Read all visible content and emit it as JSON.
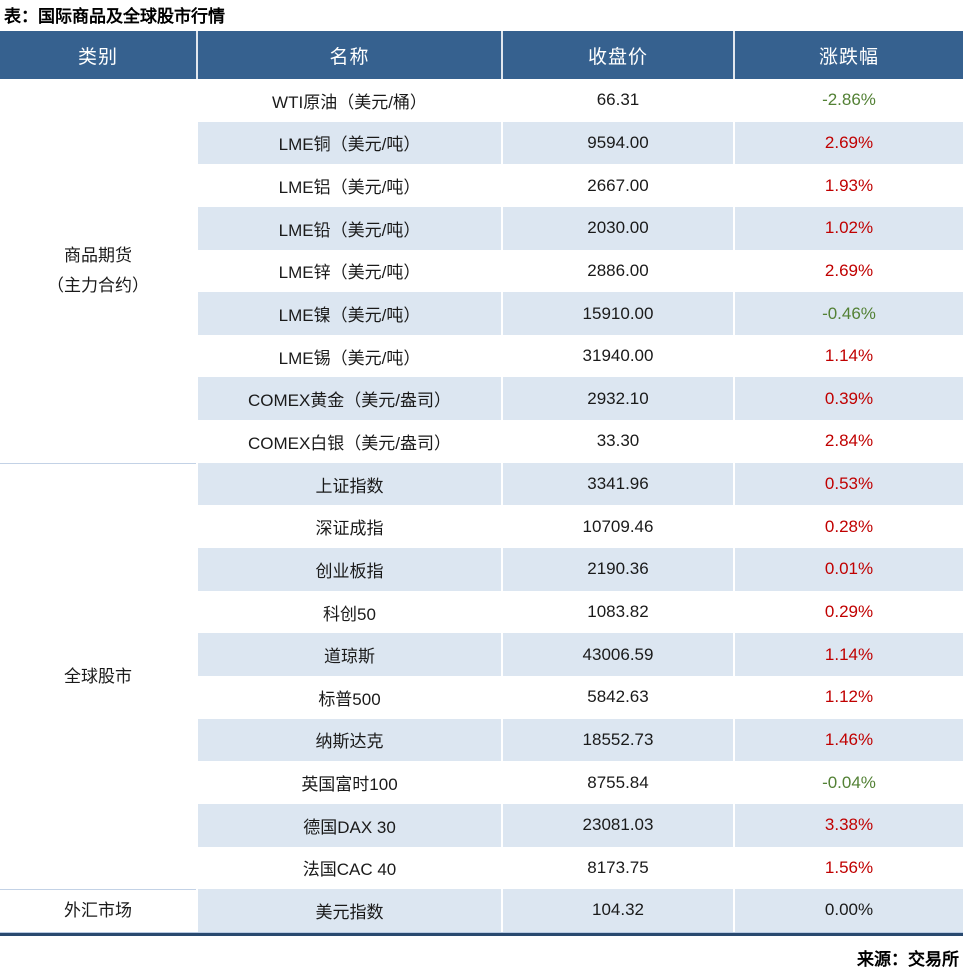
{
  "title": "表：国际商品及全球股市行情",
  "source": "来源：交易所",
  "colors": {
    "header_bg": "#36618F",
    "row_stripe": "#DCE6F1",
    "up_red": "#C00000",
    "down_green": "#538135",
    "flat_black": "#1A1A1A",
    "bottom_border": "#29496F"
  },
  "table": {
    "columns": [
      "类别",
      "名称",
      "收盘价",
      "涨跌幅"
    ],
    "groups": [
      {
        "lines": [
          "商品期货",
          "（主力合约）"
        ],
        "rows": [
          {
            "name": "WTI原油（美元/桶）",
            "close": "66.31",
            "change": "-2.86%",
            "trend": "down"
          },
          {
            "name": "LME铜（美元/吨）",
            "close": "9594.00",
            "change": "2.69%",
            "trend": "up"
          },
          {
            "name": "LME铝（美元/吨）",
            "close": "2667.00",
            "change": "1.93%",
            "trend": "up"
          },
          {
            "name": "LME铅（美元/吨）",
            "close": "2030.00",
            "change": "1.02%",
            "trend": "up"
          },
          {
            "name": "LME锌（美元/吨）",
            "close": "2886.00",
            "change": "2.69%",
            "trend": "up"
          },
          {
            "name": "LME镍（美元/吨）",
            "close": "15910.00",
            "change": "-0.46%",
            "trend": "down"
          },
          {
            "name": "LME锡（美元/吨）",
            "close": "31940.00",
            "change": "1.14%",
            "trend": "up"
          },
          {
            "name": "COMEX黄金（美元/盎司）",
            "close": "2932.10",
            "change": "0.39%",
            "trend": "up"
          },
          {
            "name": "COMEX白银（美元/盎司）",
            "close": "33.30",
            "change": "2.84%",
            "trend": "up"
          }
        ]
      },
      {
        "lines": [
          "全球股市"
        ],
        "rows": [
          {
            "name": "上证指数",
            "close": "3341.96",
            "change": "0.53%",
            "trend": "up"
          },
          {
            "name": "深证成指",
            "close": "10709.46",
            "change": "0.28%",
            "trend": "up"
          },
          {
            "name": "创业板指",
            "close": "2190.36",
            "change": "0.01%",
            "trend": "up"
          },
          {
            "name": "科创50",
            "close": "1083.82",
            "change": "0.29%",
            "trend": "up"
          },
          {
            "name": "道琼斯",
            "close": "43006.59",
            "change": "1.14%",
            "trend": "up"
          },
          {
            "name": "标普500",
            "close": "5842.63",
            "change": "1.12%",
            "trend": "up"
          },
          {
            "name": "纳斯达克",
            "close": "18552.73",
            "change": "1.46%",
            "trend": "up"
          },
          {
            "name": "英国富时100",
            "close": "8755.84",
            "change": "-0.04%",
            "trend": "down"
          },
          {
            "name": "德国DAX 30",
            "close": "23081.03",
            "change": "3.38%",
            "trend": "up"
          },
          {
            "name": "法国CAC 40",
            "close": "8173.75",
            "change": "1.56%",
            "trend": "up"
          }
        ]
      },
      {
        "lines": [
          "外汇市场"
        ],
        "rows": [
          {
            "name": "美元指数",
            "close": "104.32",
            "change": "0.00%",
            "trend": "flat"
          }
        ]
      }
    ]
  }
}
